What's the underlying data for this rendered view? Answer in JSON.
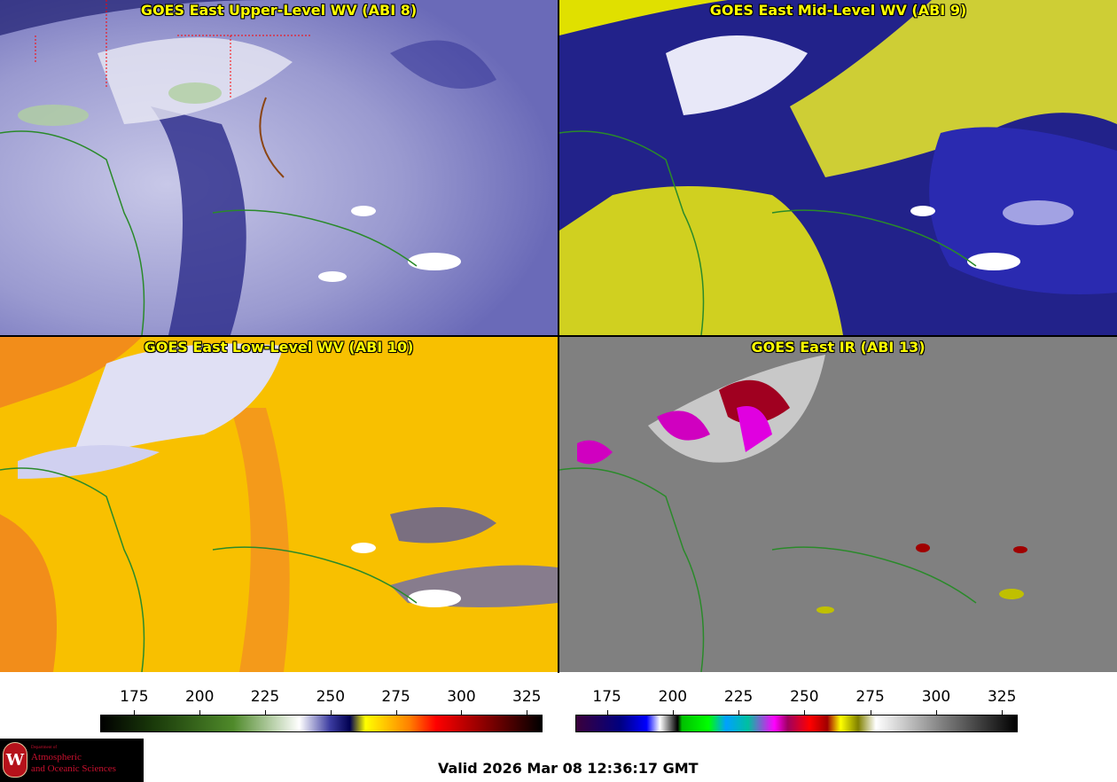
{
  "panels": [
    {
      "title": "GOES East Upper-Level WV (ABI 8)",
      "colormap": "wv"
    },
    {
      "title": "GOES East Mid-Level WV (ABI 9)",
      "colormap": "wv-mid"
    },
    {
      "title": "GOES East Low-Level WV (ABI 10)",
      "colormap": "wv-low"
    },
    {
      "title": "GOES East IR (ABI 13)",
      "colormap": "ir"
    }
  ],
  "colorbars": {
    "wv": {
      "ticks": [
        "175",
        "200",
        "225",
        "250",
        "275",
        "300",
        "325"
      ],
      "range": [
        162,
        331
      ],
      "stops": [
        [
          "#000000",
          0
        ],
        [
          "#1a3a0a",
          0.12
        ],
        [
          "#4f8a2a",
          0.3
        ],
        [
          "#ffffff",
          0.45
        ],
        [
          "#3b3ba0",
          0.52
        ],
        [
          "#000050",
          0.565
        ],
        [
          "#ffff00",
          0.6
        ],
        [
          "#ff8000",
          0.7
        ],
        [
          "#ff0000",
          0.76
        ],
        [
          "#8b0000",
          0.87
        ],
        [
          "#000000",
          1
        ]
      ]
    },
    "ir": {
      "ticks": [
        "175",
        "200",
        "225",
        "250",
        "275",
        "300",
        "325"
      ],
      "range": [
        163,
        331
      ],
      "stops": [
        [
          "#3b003b",
          0
        ],
        [
          "#000080",
          0.1
        ],
        [
          "#0000ff",
          0.16
        ],
        [
          "#ffffff",
          0.19
        ],
        [
          "#000000",
          0.23
        ],
        [
          "#00c000",
          0.24
        ],
        [
          "#00ff00",
          0.3
        ],
        [
          "#00a0ff",
          0.34
        ],
        [
          "#00c0a0",
          0.39
        ],
        [
          "#ff00ff",
          0.45
        ],
        [
          "#a00060",
          0.48
        ],
        [
          "#ff0000",
          0.53
        ],
        [
          "#a00000",
          0.57
        ],
        [
          "#ffff00",
          0.6
        ],
        [
          "#808000",
          0.64
        ],
        [
          "#ffffff",
          0.68
        ],
        [
          "#808080",
          0.83
        ],
        [
          "#000000",
          1
        ]
      ]
    }
  },
  "logo": {
    "seal": "W",
    "department": "Department of",
    "line1": "Atmospheric",
    "line2": "and Oceanic Sciences"
  },
  "valid_time": "Valid 2026 Mar 08 12:36:17 GMT"
}
